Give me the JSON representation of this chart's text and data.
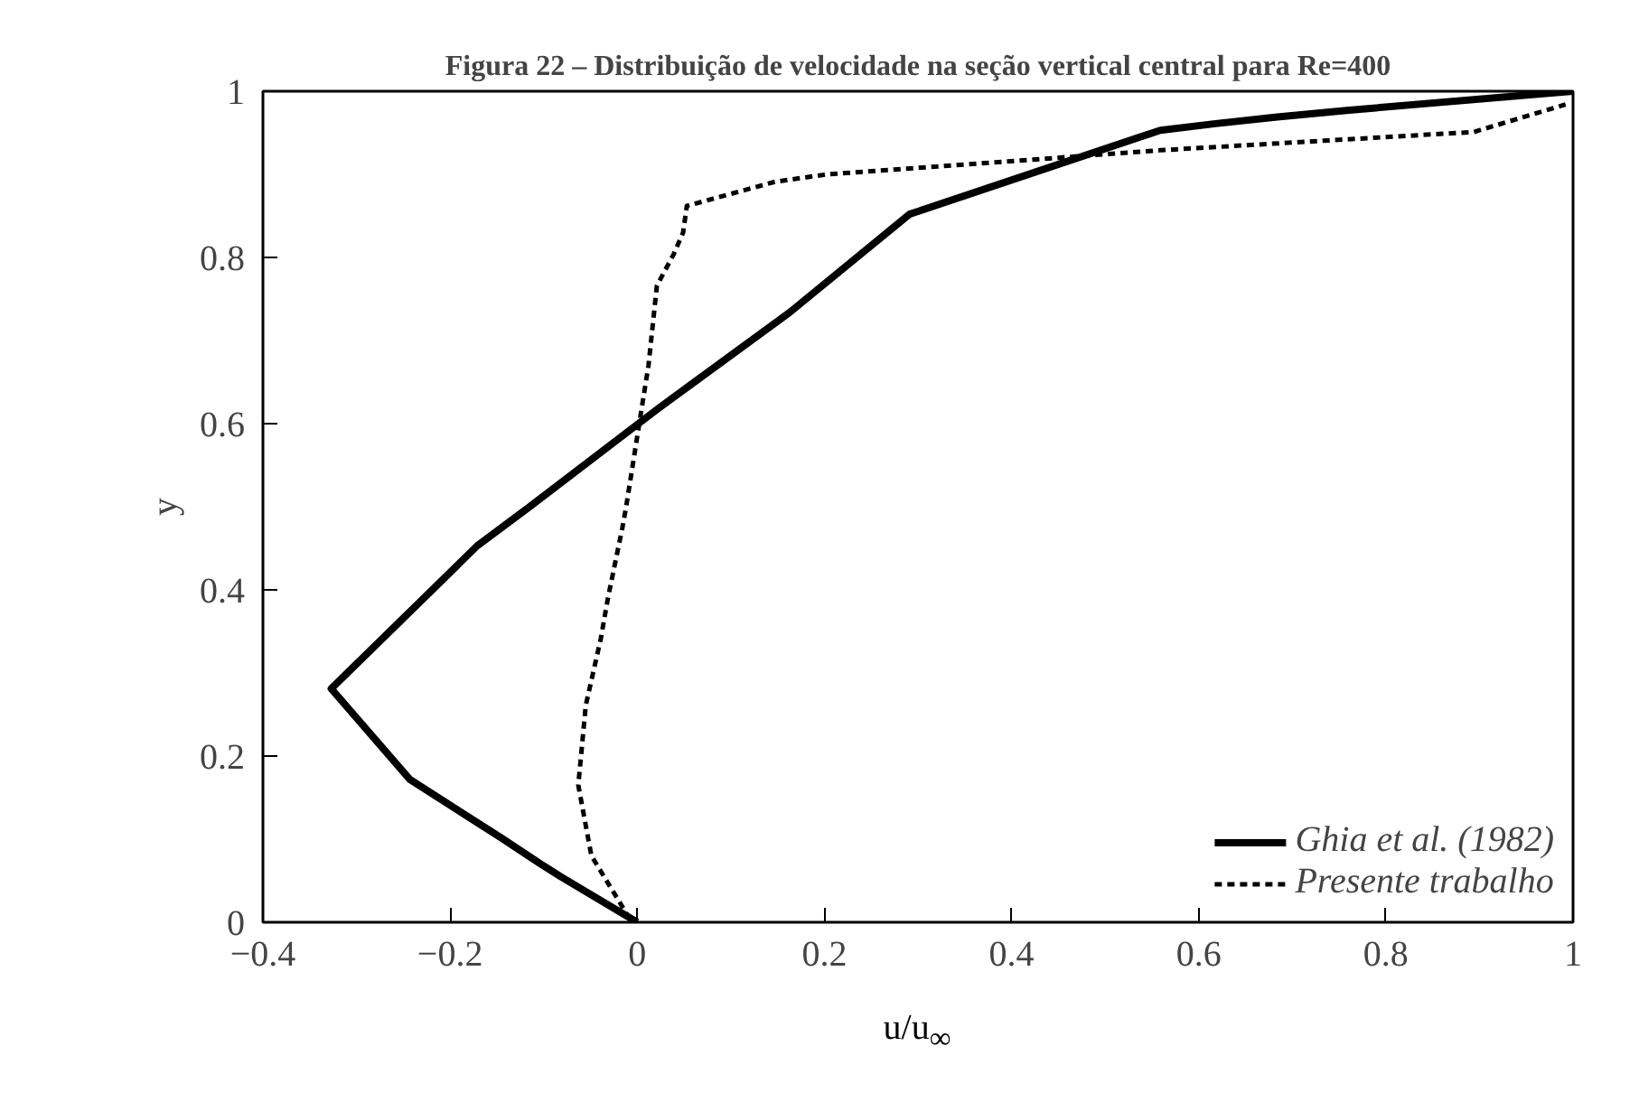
{
  "chart_data": {
    "type": "line",
    "title": "Figura 22 – Distribuição de velocidade na seção vertical central para Re=400",
    "xlabel": "u/u$_{∞}$",
    "ylabel": "y",
    "xlim": [
      -0.4,
      1
    ],
    "ylim": [
      0,
      1
    ],
    "xticks": [
      {
        "value": -0.4,
        "label": "−0.4"
      },
      {
        "value": -0.2,
        "label": "−0.2"
      },
      0,
      0.2,
      0.4,
      0.6,
      0.8,
      1
    ],
    "yticks": [
      0,
      0.2,
      0.4,
      0.6,
      0.8,
      1
    ],
    "grid": false,
    "legend": "bottom right",
    "series": [
      {
        "name": "Ghia et al. (1982)",
        "color": "#000000",
        "line_style": "solid",
        "x": [
          0,
          -0.082,
          -0.093,
          -0.103,
          -0.146,
          -0.243,
          -0.327,
          -0.171,
          -0.115,
          0.021,
          0.163,
          0.291,
          0.559,
          0.618,
          0.684,
          0.758,
          1
        ],
        "values": [
          0,
          0.055,
          0.063,
          0.07,
          0.102,
          0.172,
          0.281,
          0.453,
          0.5,
          0.617,
          0.734,
          0.852,
          0.953,
          0.961,
          0.969,
          0.977,
          1
        ]
      },
      {
        "name": "Presente trabalho",
        "color": "#000000",
        "line_style": "dashed",
        "x": [
          -0.008,
          -0.049,
          -0.063,
          -0.055,
          -0.039,
          -0.031,
          -0.016,
          -0.012,
          0.003,
          0.012,
          0.021,
          0.039,
          0.049,
          0.053,
          0.147,
          0.203,
          0.39,
          0.559,
          0.894,
          0.992
        ],
        "values": [
          0.004,
          0.08,
          0.165,
          0.261,
          0.341,
          0.392,
          0.474,
          0.499,
          0.606,
          0.67,
          0.766,
          0.804,
          0.83,
          0.862,
          0.891,
          0.9,
          0.915,
          0.929,
          0.951,
          0.984
        ]
      }
    ]
  }
}
